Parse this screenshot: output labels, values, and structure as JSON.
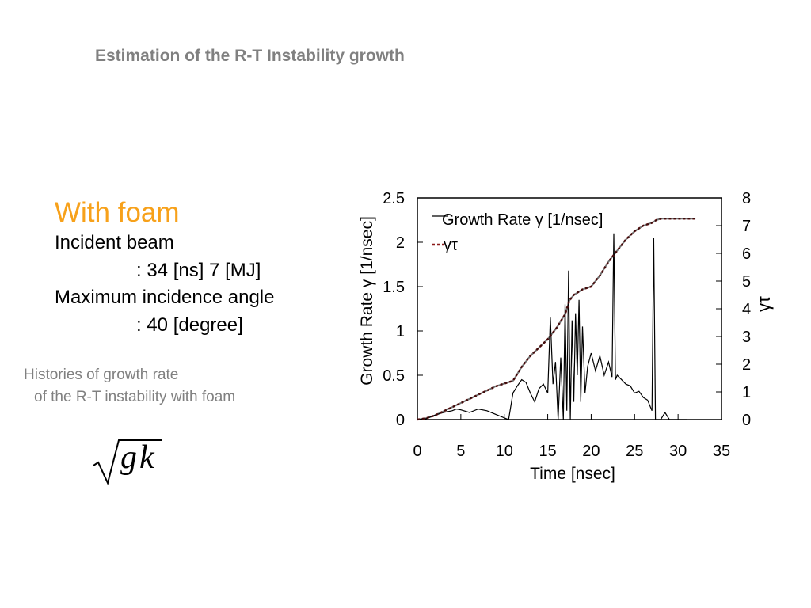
{
  "slide": {
    "title": "Estimation of the R-T Instability growth",
    "heading": "With foam",
    "lines": [
      "Incident beam",
      ": 34 [ns]  7 [MJ]",
      "Maximum incidence angle",
      ": 40 [degree]"
    ],
    "caption": [
      "Histories of growth rate",
      "of the R-T instability with foam"
    ],
    "formula": "gk",
    "heading_color": "#f7a11a",
    "muted_color": "#808080"
  },
  "chart_data": {
    "type": "line",
    "xlabel": "Time [nsec]",
    "ylabel": "Growth Rate γ [1/nsec]",
    "y2label": "γτ",
    "xlim": [
      0,
      35
    ],
    "ylim": [
      0,
      2.5
    ],
    "y2lim": [
      0,
      8
    ],
    "xticks": [
      "0",
      "5",
      "10",
      "15",
      "20",
      "25",
      "30",
      "35"
    ],
    "yticks": [
      "0",
      "0.5",
      "1",
      "1.5",
      "2",
      "2.5"
    ],
    "y2ticks": [
      "0",
      "1",
      "2",
      "3",
      "4",
      "5",
      "6",
      "7",
      "8"
    ],
    "legend_position": "top-left",
    "series": [
      {
        "name": "Growth Rate γ [1/nsec]",
        "axis": "left",
        "style": "solid",
        "color": "#000000",
        "x": [
          0,
          1,
          2,
          3,
          4,
          4.5,
          5,
          6,
          7,
          8,
          9,
          10,
          10.5,
          11,
          11.5,
          12,
          12.5,
          13,
          13.5,
          14,
          14.5,
          15,
          15.3,
          15.6,
          15.9,
          16.2,
          16.5,
          16.8,
          17.0,
          17.2,
          17.4,
          17.6,
          17.8,
          18.0,
          18.2,
          18.4,
          18.6,
          18.8,
          19.0,
          19.3,
          19.6,
          20,
          20.5,
          21,
          21.5,
          22,
          22.4,
          22.6,
          22.8,
          23,
          23.5,
          24,
          24.5,
          25,
          25.5,
          26,
          26.5,
          27,
          27.2,
          27.4,
          27.6,
          28,
          28.5,
          29,
          30,
          31
        ],
        "y": [
          0,
          0.01,
          0.05,
          0.08,
          0.1,
          0.12,
          0.11,
          0.08,
          0.12,
          0.1,
          0.06,
          0.02,
          0,
          0.3,
          0.38,
          0.45,
          0.42,
          0.3,
          0.2,
          0.35,
          0.4,
          0.3,
          1.15,
          0.4,
          0.65,
          0,
          0.7,
          0,
          1.3,
          0.1,
          1.68,
          0,
          1.12,
          0.2,
          1.2,
          0.5,
          1.35,
          0.2,
          1.05,
          0.3,
          0.6,
          0.75,
          0.55,
          0.72,
          0.5,
          0.65,
          0.48,
          2.1,
          0.45,
          0.5,
          0.45,
          0.4,
          0.38,
          0.3,
          0.32,
          0.25,
          0.22,
          0.1,
          2.05,
          0,
          0,
          0,
          0.08,
          0,
          0,
          0
        ]
      },
      {
        "name": "γτ",
        "axis": "right",
        "style": "dotted",
        "color": "#8b1a1a",
        "x": [
          0,
          1,
          2,
          3,
          4,
          5,
          6,
          7,
          8,
          9,
          10,
          11,
          12,
          13,
          14,
          15,
          16,
          17,
          17.5,
          18,
          19,
          20,
          21,
          22,
          23,
          24,
          25,
          26,
          27,
          27.5,
          28,
          29,
          30,
          31,
          32
        ],
        "y": [
          0,
          0.05,
          0.15,
          0.3,
          0.45,
          0.6,
          0.75,
          0.9,
          1.05,
          1.2,
          1.3,
          1.4,
          1.9,
          2.3,
          2.6,
          2.9,
          3.3,
          3.8,
          4.3,
          4.5,
          4.7,
          4.8,
          5.2,
          5.7,
          6.1,
          6.5,
          6.8,
          7.0,
          7.1,
          7.2,
          7.25,
          7.25,
          7.25,
          7.25,
          7.25
        ]
      }
    ]
  }
}
